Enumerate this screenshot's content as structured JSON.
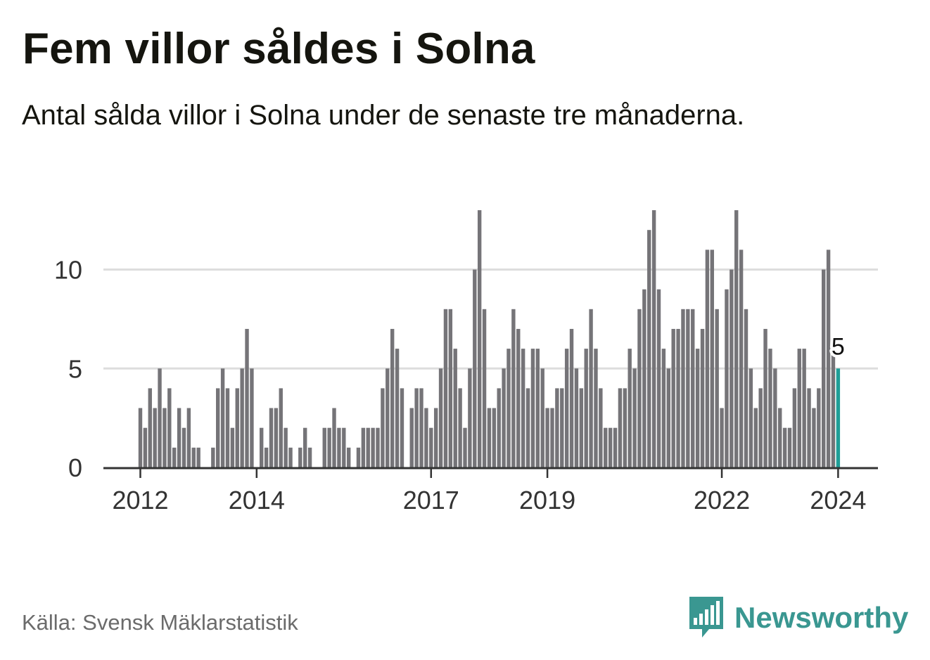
{
  "title": "Fem villor såldes i Solna",
  "subtitle": "Antal sålda villor i Solna under de senaste tre månaderna.",
  "source": "Källa: Svensk Mäklarstatistik",
  "brand": {
    "name": "Newsworthy",
    "icon": "bar-chart-speech-bubble-icon",
    "color": "#3a9791"
  },
  "colors": {
    "bar": "#757478",
    "highlight": "#1f9e97",
    "grid": "#dddddd",
    "axis": "#333333"
  },
  "chart_data": {
    "type": "bar",
    "title": "Fem villor såldes i Solna",
    "xlabel": "",
    "ylabel": "",
    "ylim": [
      0,
      13
    ],
    "y_ticks": [
      0,
      5,
      10
    ],
    "y_tick_labels": [
      "0",
      "5",
      "10"
    ],
    "x_tick_labels": [
      "2012",
      "2014",
      "2017",
      "2019",
      "2022",
      "2024"
    ],
    "x_tick_indices": [
      0,
      24,
      60,
      84,
      120,
      144
    ],
    "start": "2012-01",
    "end": "2024-01",
    "grid": true,
    "highlight": {
      "index": 144,
      "value": 5,
      "label": "5"
    },
    "values": [
      3,
      2,
      4,
      3,
      5,
      3,
      4,
      1,
      3,
      2,
      3,
      1,
      1,
      0,
      0,
      1,
      4,
      5,
      4,
      2,
      4,
      5,
      7,
      5,
      0,
      2,
      1,
      3,
      3,
      4,
      2,
      1,
      0,
      1,
      2,
      1,
      0,
      0,
      2,
      2,
      3,
      2,
      2,
      1,
      0,
      1,
      2,
      2,
      2,
      2,
      4,
      5,
      7,
      6,
      4,
      0,
      3,
      4,
      4,
      3,
      2,
      3,
      5,
      8,
      8,
      6,
      4,
      2,
      5,
      10,
      13,
      8,
      3,
      3,
      4,
      5,
      6,
      8,
      7,
      6,
      4,
      6,
      6,
      5,
      3,
      3,
      4,
      4,
      6,
      7,
      5,
      4,
      6,
      8,
      6,
      4,
      2,
      2,
      2,
      4,
      4,
      6,
      5,
      8,
      9,
      12,
      13,
      9,
      6,
      5,
      7,
      7,
      8,
      8,
      8,
      6,
      7,
      11,
      11,
      8,
      3,
      9,
      10,
      13,
      11,
      8,
      5,
      3,
      4,
      7,
      6,
      5,
      3,
      2,
      2,
      4,
      6,
      6,
      4,
      3,
      4,
      10,
      11,
      6,
      5
    ]
  }
}
